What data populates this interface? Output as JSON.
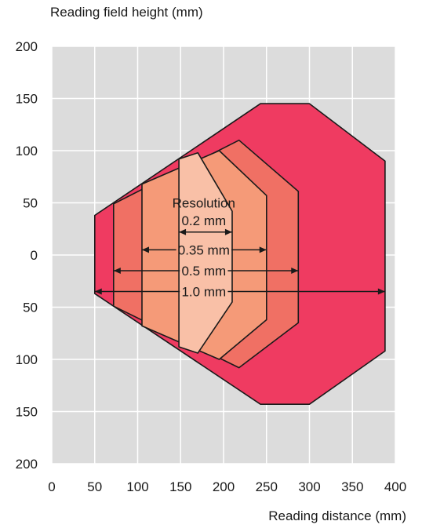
{
  "chart_data": {
    "type": "area",
    "title": "",
    "ylabel": "Reading field height (mm)",
    "xlabel": "Reading distance (mm)",
    "xlim": [
      0,
      400
    ],
    "ylim": [
      -200,
      200
    ],
    "grid": true,
    "x_ticks": [
      0,
      50,
      100,
      150,
      200,
      250,
      300,
      350,
      400
    ],
    "y_ticks": [
      200,
      150,
      100,
      50,
      0,
      -50,
      -100,
      -150,
      -200
    ],
    "y_tick_labels": [
      "200",
      "150",
      "100",
      "50",
      "0",
      "50",
      "100",
      "150",
      "200"
    ],
    "colors": {
      "background": "#dcdcdc",
      "grid": "#ffffff",
      "outline": "#1a1a1a",
      "r1.0": "#ef3b61",
      "r0.5": "#f07064",
      "r0.35": "#f59a78",
      "r0.2": "#f9c0a7"
    },
    "annotation_title": "Resolution",
    "series": [
      {
        "label": "1.0 mm",
        "color_key": "r1.0",
        "x_extent": [
          50,
          388
        ],
        "polygon": [
          [
            50,
            38
          ],
          [
            243,
            145
          ],
          [
            300,
            145
          ],
          [
            388,
            90
          ],
          [
            388,
            -92
          ],
          [
            300,
            -143
          ],
          [
            243,
            -143
          ],
          [
            50,
            -37
          ]
        ]
      },
      {
        "label": "0.5 mm",
        "color_key": "r0.5",
        "x_extent": [
          72,
          287
        ],
        "polygon": [
          [
            72,
            49
          ],
          [
            218,
            110
          ],
          [
            287,
            61
          ],
          [
            287,
            -65
          ],
          [
            218,
            -108
          ],
          [
            72,
            -49
          ]
        ]
      },
      {
        "label": "0.35 mm",
        "color_key": "r0.35",
        "x_extent": [
          105,
          250
        ],
        "polygon": [
          [
            105,
            68
          ],
          [
            195,
            100
          ],
          [
            250,
            57
          ],
          [
            250,
            -62
          ],
          [
            195,
            -100
          ],
          [
            105,
            -68
          ]
        ]
      },
      {
        "label": "0.2 mm",
        "color_key": "r0.2",
        "x_extent": [
          148,
          210
        ],
        "polygon": [
          [
            148,
            92
          ],
          [
            170,
            98
          ],
          [
            210,
            42
          ],
          [
            210,
            -45
          ],
          [
            170,
            -94
          ],
          [
            148,
            -88
          ]
        ]
      }
    ]
  }
}
